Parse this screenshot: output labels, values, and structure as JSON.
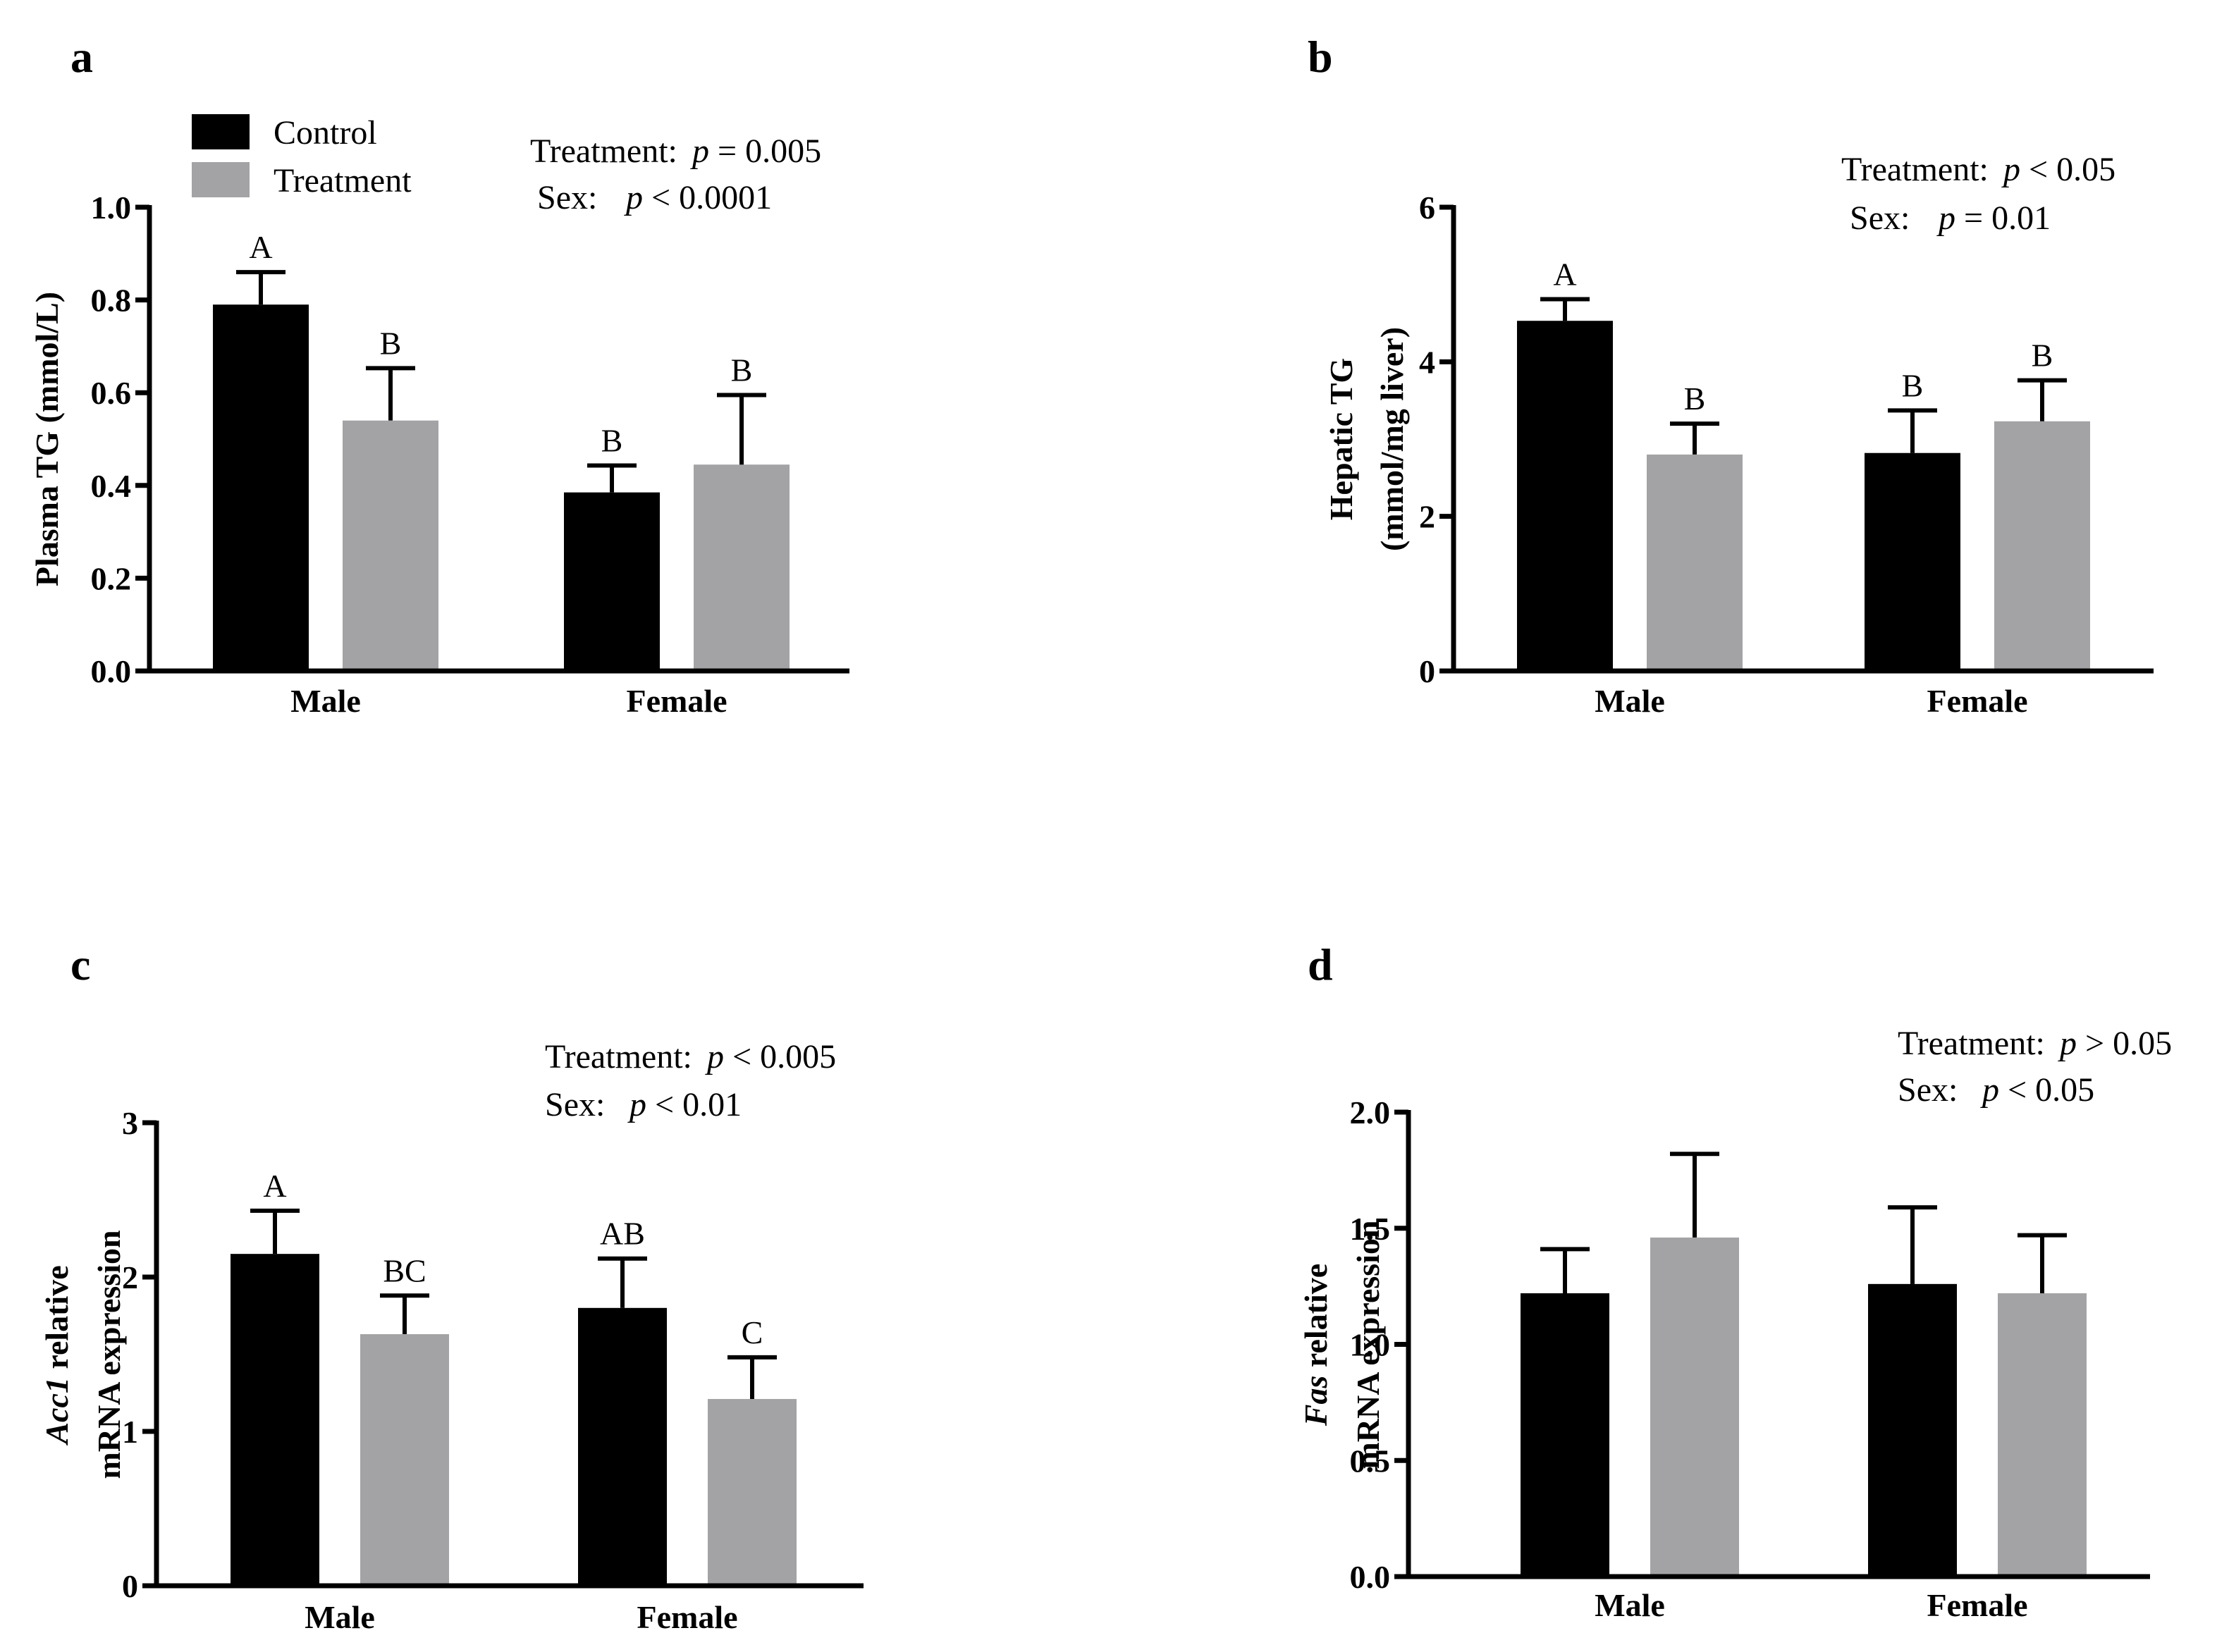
{
  "colors": {
    "control": "#000000",
    "treatment": "#a3a3a6"
  },
  "legend": [
    {
      "label": "Control",
      "color": "#000000"
    },
    {
      "label": "Treatment",
      "color": "#a3a3a6"
    }
  ],
  "chart_data": [
    {
      "id": "a",
      "type": "bar",
      "panel_label": "a",
      "categories": [
        "Male",
        "Female"
      ],
      "series": [
        {
          "name": "Control",
          "values": [
            0.79,
            0.385
          ],
          "errors": [
            0.07,
            0.058
          ],
          "letters": [
            "A",
            "B"
          ]
        },
        {
          "name": "Treatment",
          "values": [
            0.54,
            0.445
          ],
          "errors": [
            0.113,
            0.15
          ],
          "letters": [
            "B",
            "B"
          ]
        }
      ],
      "ylabel": [
        "Plasma TG (mmol/L)"
      ],
      "ylim": [
        0,
        1.0
      ],
      "yticks": [
        "0.0",
        "0.2",
        "0.4",
        "0.6",
        "0.8",
        "1.0"
      ],
      "tick_values": [
        0,
        0.2,
        0.4,
        0.6,
        0.8,
        1.0
      ],
      "stats": [
        {
          "label": "Treatment:",
          "p": "p",
          "rest": "= 0.005"
        },
        {
          "label": "Sex:",
          "p": "p",
          "rest": "< 0.0001"
        }
      ],
      "legend_placement": "top-left"
    },
    {
      "id": "b",
      "type": "bar",
      "panel_label": "b",
      "categories": [
        "Male",
        "Female"
      ],
      "series": [
        {
          "name": "Control",
          "values": [
            4.53,
            2.82
          ],
          "errors": [
            0.28,
            0.55
          ],
          "letters": [
            "A",
            "B"
          ]
        },
        {
          "name": "Treatment",
          "values": [
            2.8,
            3.23
          ],
          "errors": [
            0.4,
            0.53
          ],
          "letters": [
            "B",
            "B"
          ]
        }
      ],
      "ylabel": [
        "Hepatic TG",
        "(mmol/mg liver)"
      ],
      "ylim": [
        0,
        6
      ],
      "yticks": [
        "0",
        "2",
        "4",
        "6"
      ],
      "tick_values": [
        0,
        2,
        4,
        6
      ],
      "stats": [
        {
          "label": "Treatment:",
          "p": "p",
          "rest": "< 0.05"
        },
        {
          "label": "Sex:",
          "p": "p",
          "rest": "= 0.01"
        }
      ]
    },
    {
      "id": "c",
      "type": "bar",
      "panel_label": "c",
      "categories": [
        "Male",
        "Female"
      ],
      "series": [
        {
          "name": "Control",
          "values": [
            2.15,
            1.8
          ],
          "errors": [
            0.28,
            0.32
          ],
          "letters": [
            "A",
            "AB"
          ]
        },
        {
          "name": "Treatment",
          "values": [
            1.63,
            1.21
          ],
          "errors": [
            0.25,
            0.27
          ],
          "letters": [
            "BC",
            "C"
          ]
        }
      ],
      "ylabel": [
        "Acc1 relative",
        "mRNA expression"
      ],
      "ylabel_italic_word": "Acc1",
      "ylim": [
        0,
        3
      ],
      "yticks": [
        "0",
        "1",
        "2",
        "3"
      ],
      "tick_values": [
        0,
        1,
        2,
        3
      ],
      "stats": [
        {
          "label": "Treatment:",
          "p": "p",
          "rest": "< 0.005"
        },
        {
          "label": "Sex:",
          "p": "p",
          "rest": "< 0.01"
        }
      ]
    },
    {
      "id": "d",
      "type": "bar",
      "panel_label": "d",
      "categories": [
        "Male",
        "Female"
      ],
      "series": [
        {
          "name": "Control",
          "values": [
            1.22,
            1.26
          ],
          "errors": [
            0.19,
            0.33
          ],
          "letters": [
            "",
            ""
          ]
        },
        {
          "name": "Treatment",
          "values": [
            1.46,
            1.22
          ],
          "errors": [
            0.36,
            0.25
          ],
          "letters": [
            "",
            ""
          ]
        }
      ],
      "ylabel": [
        "Fas relative",
        "mRNA expression"
      ],
      "ylabel_italic_word": "Fas",
      "ylim": [
        0,
        2.0
      ],
      "yticks": [
        "0.0",
        "0.5",
        "1.0",
        "1.5",
        "2.0"
      ],
      "tick_values": [
        0,
        0.5,
        1.0,
        1.5,
        2.0
      ],
      "stats": [
        {
          "label": "Treatment:",
          "p": "p",
          "rest": "> 0.05"
        },
        {
          "label": "Sex:",
          "p": "p",
          "rest": "< 0.05"
        }
      ]
    }
  ]
}
